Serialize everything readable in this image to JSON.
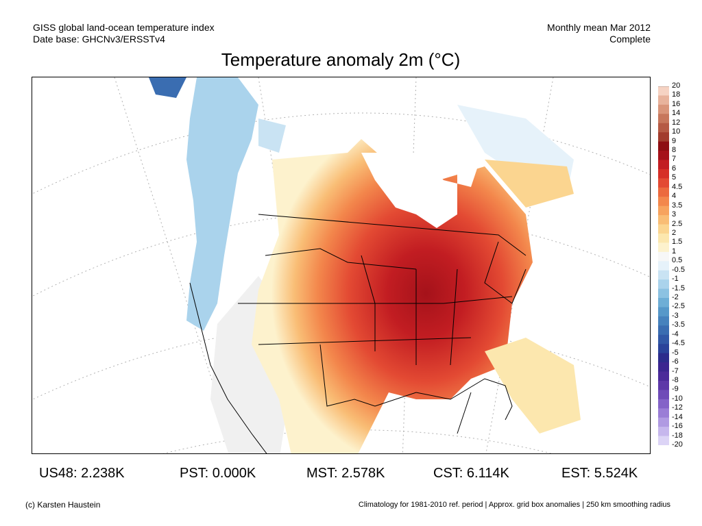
{
  "header": {
    "left_line1": "GISS global land-ocean temperature index",
    "left_line2": "Date base: GHCNv3/ERSSTv4",
    "right_line1": "Monthly mean Mar 2012",
    "right_line2": "Complete"
  },
  "title": "Temperature anomaly 2m (°C)",
  "colorbar": {
    "labels": [
      "20",
      "18",
      "16",
      "14",
      "12",
      "10",
      "9",
      "8",
      "7",
      "6",
      "5",
      "4.5",
      "4",
      "3.5",
      "3",
      "2.5",
      "2",
      "1.5",
      "1",
      "0.5",
      "-0.5",
      "-1",
      "-1.5",
      "-2",
      "-2.5",
      "-3",
      "-3.5",
      "-4",
      "-4.5",
      "-5",
      "-6",
      "-7",
      "-8",
      "-9",
      "-10",
      "-12",
      "-14",
      "-16",
      "-18",
      "-20"
    ],
    "colors": [
      "#f6d3c3",
      "#e8b39c",
      "#d9957a",
      "#c7775c",
      "#b55a44",
      "#a23c2d",
      "#8e0e12",
      "#a5121a",
      "#c21d22",
      "#d62f27",
      "#e34a33",
      "#ec6a3e",
      "#f3874c",
      "#f7a35e",
      "#f9bd75",
      "#fbd590",
      "#fce7ae",
      "#fdf2cd",
      "#f7f7f7",
      "#e6f2fa",
      "#c9e3f3",
      "#aad3ec",
      "#8cc2e2",
      "#6eaed6",
      "#5698c9",
      "#4682bd",
      "#3a6db1",
      "#3158a6",
      "#2a439a",
      "#2c2c8c",
      "#3b2590",
      "#4b2a9a",
      "#5d38a8",
      "#6f4bb8",
      "#8463c8",
      "#9a7dd6",
      "#b09ae2",
      "#c6b7ed",
      "#dcd4f6"
    ]
  },
  "stats": {
    "us48": "US48: 2.238K",
    "pst": "PST: 0.000K",
    "mst": "MST: 2.578K",
    "cst": "CST: 6.114K",
    "est": "EST: 5.524K"
  },
  "footer": {
    "left": "(c) Karsten Haustein",
    "right": "Climatology for 1981-2010 ref. period | Approx. grid box anomalies | 250 km smoothing radius"
  }
}
